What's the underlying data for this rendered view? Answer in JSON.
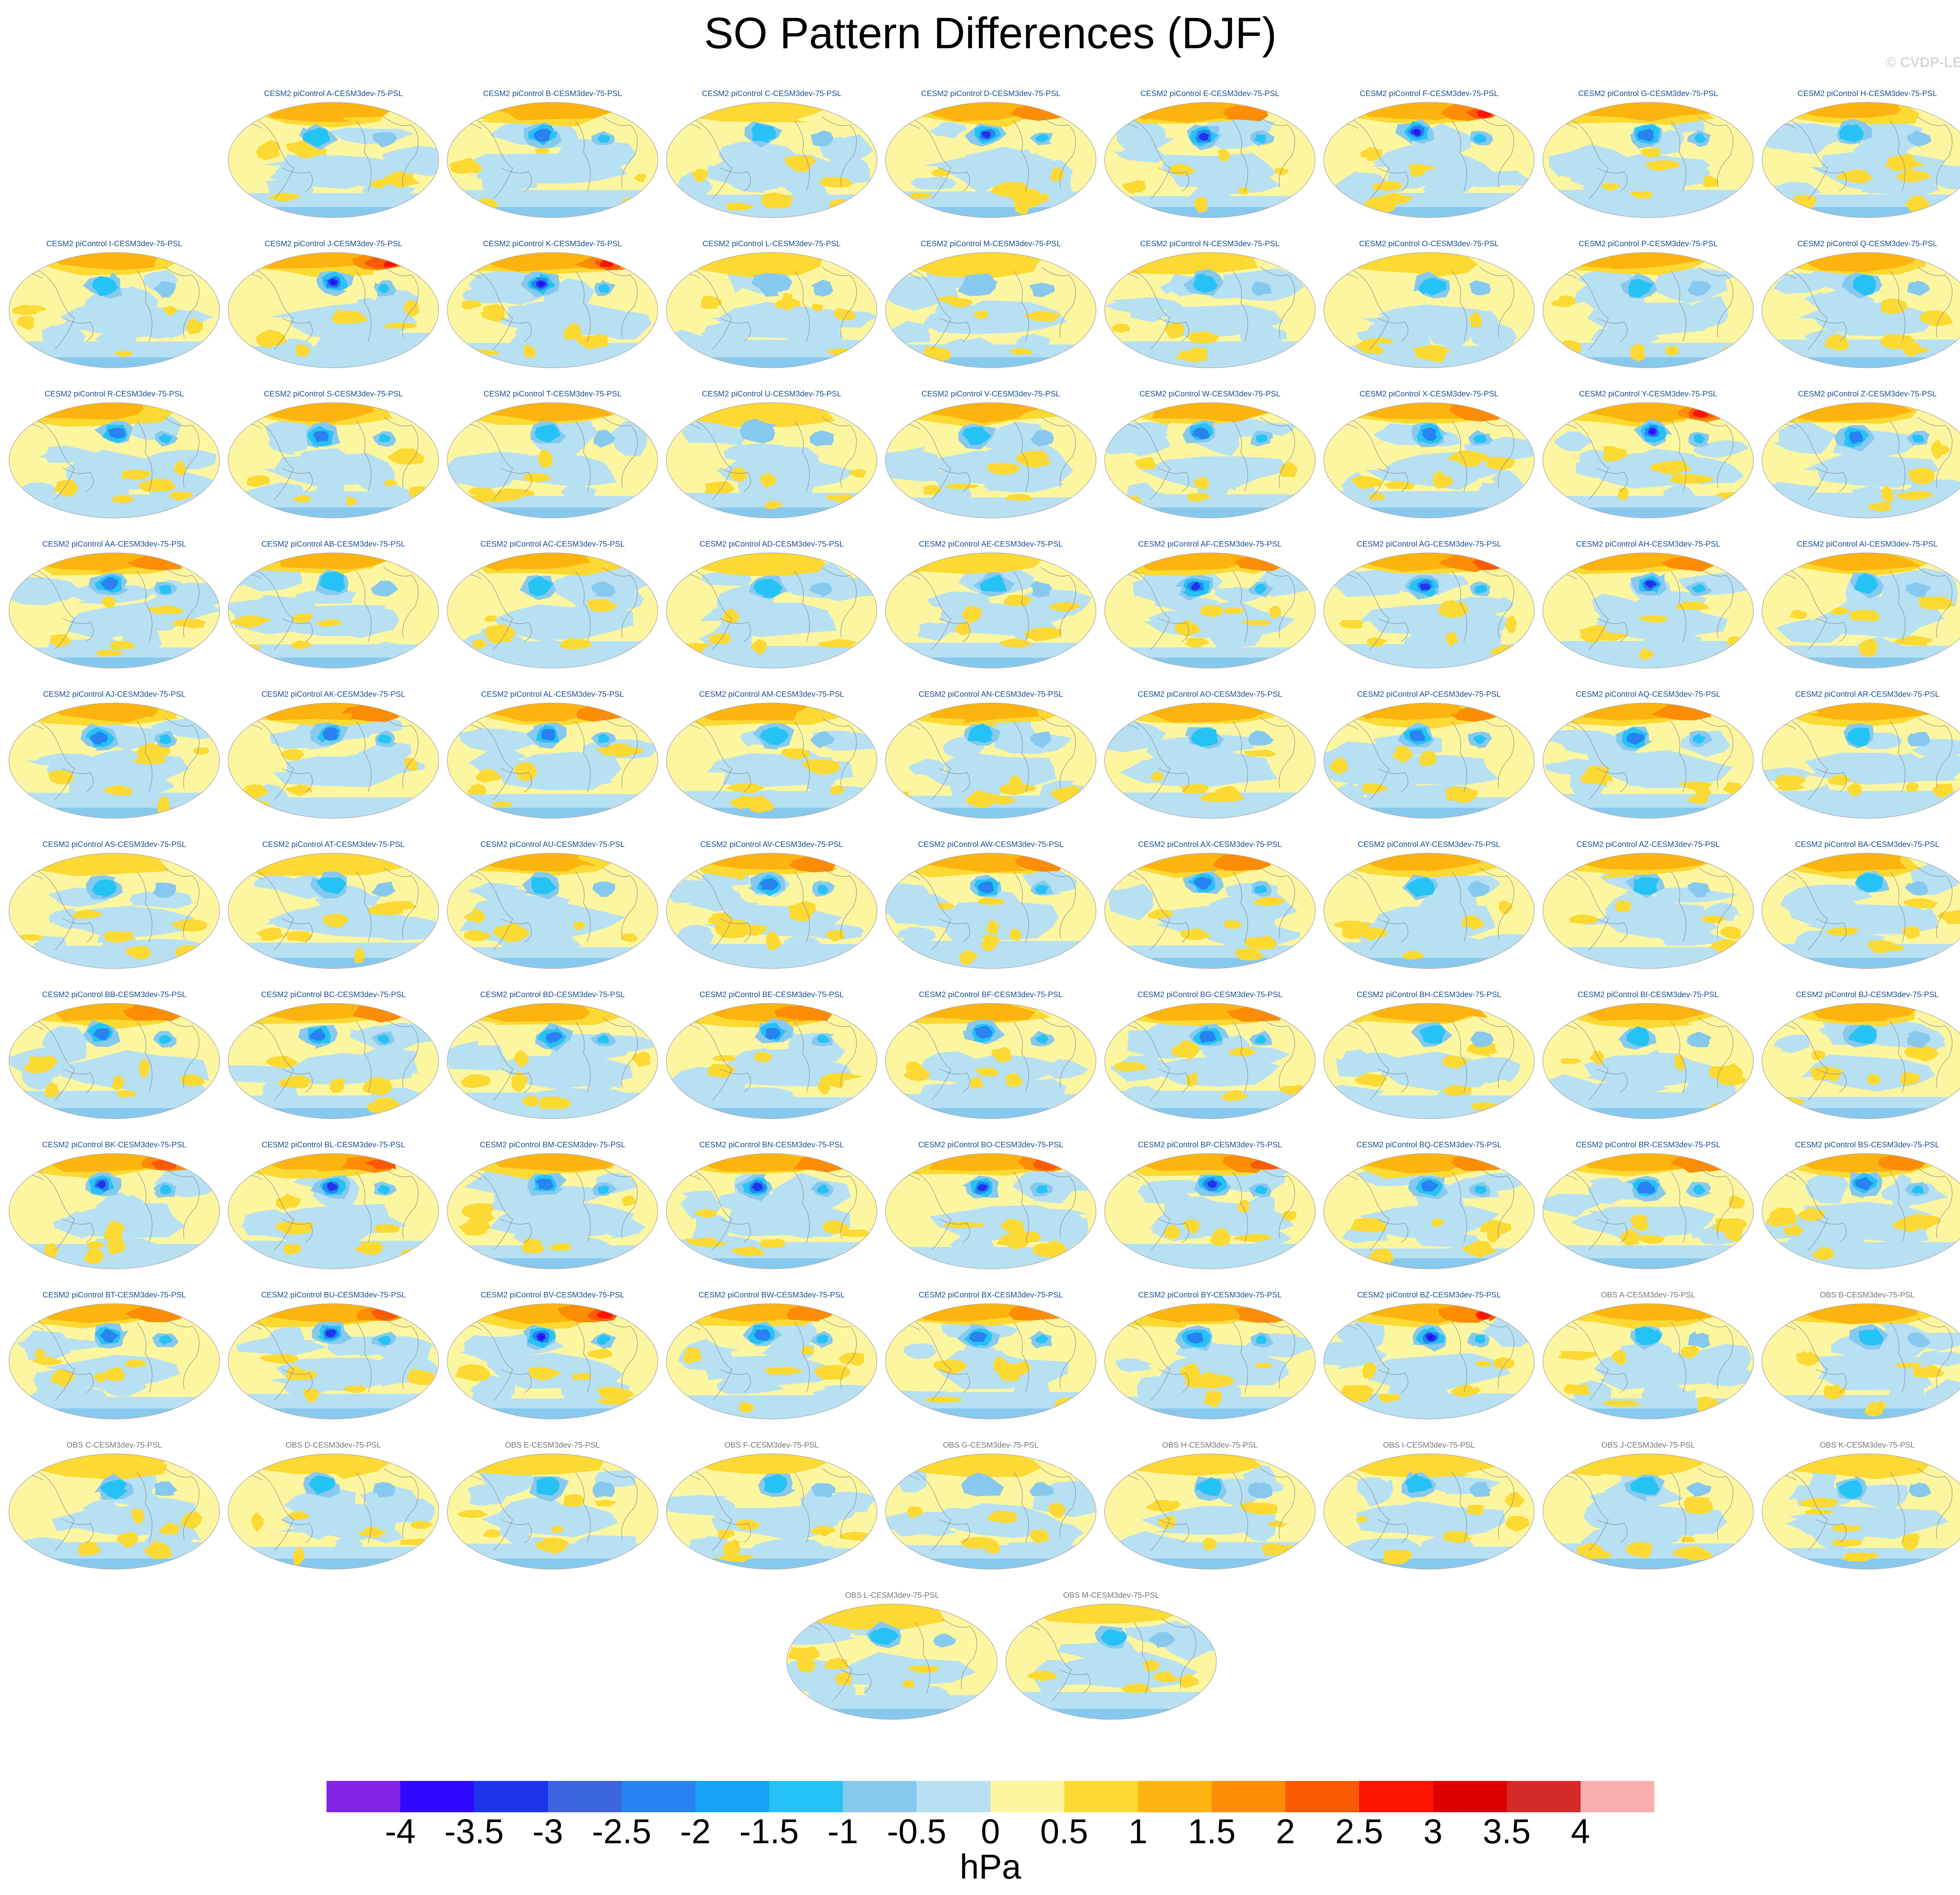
{
  "title": "SO Pattern Differences (DJF)",
  "copyright": "© CVDP-LE",
  "units": "hPa",
  "colorbar": {
    "labels": [
      "-4",
      "-3.5",
      "-3",
      "-2.5",
      "-2",
      "-1.5",
      "-1",
      "-0.5",
      "0",
      "0.5",
      "1",
      "1.5",
      "2",
      "2.5",
      "3",
      "3.5",
      "4"
    ],
    "colors": [
      "#8224e6",
      "#2e08ff",
      "#1c35ea",
      "#3a64e0",
      "#2882f0",
      "#16a3f6",
      "#25c2f5",
      "#87c9ee",
      "#b7e0f3",
      "#fdf6a0",
      "#fcd933",
      "#fdb40f",
      "#fd8c06",
      "#fb5a04",
      "#ff1400",
      "#dc0000",
      "#d42a2a",
      "#fbaeb0"
    ]
  },
  "panels": [
    {
      "label": "CESM2 piControl A-CESM3dev-75-PSL",
      "kind": "cesm",
      "strength": 0.45,
      "row": 0,
      "col": 1
    },
    {
      "label": "CESM2 piControl B-CESM3dev-75-PSL",
      "kind": "cesm",
      "strength": 0.55,
      "row": 0,
      "col": 2
    },
    {
      "label": "CESM2 piControl C-CESM3dev-75-PSL",
      "kind": "cesm",
      "strength": 0.4,
      "row": 0,
      "col": 3
    },
    {
      "label": "CESM2 piControl D-CESM3dev-75-PSL",
      "kind": "cesm",
      "strength": 0.7,
      "row": 0,
      "col": 4
    },
    {
      "label": "CESM2 piControl E-CESM3dev-75-PSL",
      "kind": "cesm",
      "strength": 0.7,
      "row": 0,
      "col": 5
    },
    {
      "label": "CESM2 piControl F-CESM3dev-75-PSL",
      "kind": "cesm",
      "strength": 0.85,
      "row": 0,
      "col": 6
    },
    {
      "label": "CESM2 piControl G-CESM3dev-75-PSL",
      "kind": "cesm",
      "strength": 0.55,
      "row": 0,
      "col": 7
    },
    {
      "label": "CESM2 piControl H-CESM3dev-75-PSL",
      "kind": "cesm",
      "strength": 0.5,
      "row": 0,
      "col": 8
    },
    {
      "label": "CESM2 piControl I-CESM3dev-75-PSL",
      "kind": "cesm",
      "strength": 0.5,
      "row": 1,
      "col": 0
    },
    {
      "label": "CESM2 piControl J-CESM3dev-75-PSL",
      "kind": "cesm",
      "strength": 0.9,
      "row": 1,
      "col": 1
    },
    {
      "label": "CESM2 piControl K-CESM3dev-75-PSL",
      "kind": "cesm",
      "strength": 0.85,
      "row": 1,
      "col": 2
    },
    {
      "label": "CESM2 piControl L-CESM3dev-75-PSL",
      "kind": "cesm",
      "strength": 0.35,
      "row": 1,
      "col": 3
    },
    {
      "label": "CESM2 piControl M-CESM3dev-75-PSL",
      "kind": "cesm",
      "strength": 0.35,
      "row": 1,
      "col": 4
    },
    {
      "label": "CESM2 piControl N-CESM3dev-75-PSL",
      "kind": "cesm",
      "strength": 0.4,
      "row": 1,
      "col": 5
    },
    {
      "label": "CESM2 piControl O-CESM3dev-75-PSL",
      "kind": "cesm",
      "strength": 0.4,
      "row": 1,
      "col": 6
    },
    {
      "label": "CESM2 piControl P-CESM3dev-75-PSL",
      "kind": "cesm",
      "strength": 0.5,
      "row": 1,
      "col": 7
    },
    {
      "label": "CESM2 piControl Q-CESM3dev-75-PSL",
      "kind": "cesm",
      "strength": 0.45,
      "row": 1,
      "col": 8
    },
    {
      "label": "CESM2 piControl R-CESM3dev-75-PSL",
      "kind": "cesm",
      "strength": 0.55,
      "row": 2,
      "col": 0
    },
    {
      "label": "CESM2 piControl S-CESM3dev-75-PSL",
      "kind": "cesm",
      "strength": 0.55,
      "row": 2,
      "col": 1
    },
    {
      "label": "CESM2 piControl T-CESM3dev-75-PSL",
      "kind": "cesm",
      "strength": 0.5,
      "row": 2,
      "col": 2
    },
    {
      "label": "CESM2 piControl U-CESM3dev-75-PSL",
      "kind": "cesm",
      "strength": 0.35,
      "row": 2,
      "col": 3
    },
    {
      "label": "CESM2 piControl V-CESM3dev-75-PSL",
      "kind": "cesm",
      "strength": 0.45,
      "row": 2,
      "col": 4
    },
    {
      "label": "CESM2 piControl W-CESM3dev-75-PSL",
      "kind": "cesm",
      "strength": 0.55,
      "row": 2,
      "col": 5
    },
    {
      "label": "CESM2 piControl X-CESM3dev-75-PSL",
      "kind": "cesm",
      "strength": 0.6,
      "row": 2,
      "col": 6
    },
    {
      "label": "CESM2 piControl Y-CESM3dev-75-PSL",
      "kind": "cesm",
      "strength": 0.85,
      "row": 2,
      "col": 7
    },
    {
      "label": "CESM2 piControl Z-CESM3dev-75-PSL",
      "kind": "cesm",
      "strength": 0.55,
      "row": 2,
      "col": 8
    },
    {
      "label": "CESM2 piControl AA-CESM3dev-75-PSL",
      "kind": "cesm",
      "strength": 0.6,
      "row": 3,
      "col": 0
    },
    {
      "label": "CESM2 piControl AB-CESM3dev-75-PSL",
      "kind": "cesm",
      "strength": 0.5,
      "row": 3,
      "col": 1
    },
    {
      "label": "CESM2 piControl AC-CESM3dev-75-PSL",
      "kind": "cesm",
      "strength": 0.45,
      "row": 3,
      "col": 2
    },
    {
      "label": "CESM2 piControl AD-CESM3dev-75-PSL",
      "kind": "cesm",
      "strength": 0.4,
      "row": 3,
      "col": 3
    },
    {
      "label": "CESM2 piControl AE-CESM3dev-75-PSL",
      "kind": "cesm",
      "strength": 0.4,
      "row": 3,
      "col": 4
    },
    {
      "label": "CESM2 piControl AF-CESM3dev-75-PSL",
      "kind": "cesm",
      "strength": 0.7,
      "row": 3,
      "col": 5
    },
    {
      "label": "CESM2 piControl AG-CESM3dev-75-PSL",
      "kind": "cesm",
      "strength": 0.75,
      "row": 3,
      "col": 6
    },
    {
      "label": "CESM2 piControl AH-CESM3dev-75-PSL",
      "kind": "cesm",
      "strength": 0.7,
      "row": 3,
      "col": 7
    },
    {
      "label": "CESM2 piControl AI-CESM3dev-75-PSL",
      "kind": "cesm",
      "strength": 0.45,
      "row": 3,
      "col": 8
    },
    {
      "label": "CESM2 piControl AJ-CESM3dev-75-PSL",
      "kind": "cesm",
      "strength": 0.55,
      "row": 4,
      "col": 0
    },
    {
      "label": "CESM2 piControl AK-CESM3dev-75-PSL",
      "kind": "cesm",
      "strength": 0.6,
      "row": 4,
      "col": 1
    },
    {
      "label": "CESM2 piControl AL-CESM3dev-75-PSL",
      "kind": "cesm",
      "strength": 0.6,
      "row": 4,
      "col": 2
    },
    {
      "label": "CESM2 piControl AM-CESM3dev-75-PSL",
      "kind": "cesm",
      "strength": 0.5,
      "row": 4,
      "col": 3
    },
    {
      "label": "CESM2 piControl AN-CESM3dev-75-PSL",
      "kind": "cesm",
      "strength": 0.45,
      "row": 4,
      "col": 4
    },
    {
      "label": "CESM2 piControl AO-CESM3dev-75-PSL",
      "kind": "cesm",
      "strength": 0.45,
      "row": 4,
      "col": 5
    },
    {
      "label": "CESM2 piControl AP-CESM3dev-75-PSL",
      "kind": "cesm",
      "strength": 0.65,
      "row": 4,
      "col": 6
    },
    {
      "label": "CESM2 piControl AQ-CESM3dev-75-PSL",
      "kind": "cesm",
      "strength": 0.6,
      "row": 4,
      "col": 7
    },
    {
      "label": "CESM2 piControl AR-CESM3dev-75-PSL",
      "kind": "cesm",
      "strength": 0.45,
      "row": 4,
      "col": 8
    },
    {
      "label": "CESM2 piControl AS-CESM3dev-75-PSL",
      "kind": "cesm",
      "strength": 0.4,
      "row": 5,
      "col": 0
    },
    {
      "label": "CESM2 piControl AT-CESM3dev-75-PSL",
      "kind": "cesm",
      "strength": 0.4,
      "row": 5,
      "col": 1
    },
    {
      "label": "CESM2 piControl AU-CESM3dev-75-PSL",
      "kind": "cesm",
      "strength": 0.5,
      "row": 5,
      "col": 2
    },
    {
      "label": "CESM2 piControl AV-CESM3dev-75-PSL",
      "kind": "cesm",
      "strength": 0.6,
      "row": 5,
      "col": 3
    },
    {
      "label": "CESM2 piControl AW-CESM3dev-75-PSL",
      "kind": "cesm",
      "strength": 0.6,
      "row": 5,
      "col": 4
    },
    {
      "label": "CESM2 piControl AX-CESM3dev-75-PSL",
      "kind": "cesm",
      "strength": 0.65,
      "row": 5,
      "col": 5
    },
    {
      "label": "CESM2 piControl AY-CESM3dev-75-PSL",
      "kind": "cesm",
      "strength": 0.5,
      "row": 5,
      "col": 6
    },
    {
      "label": "CESM2 piControl AZ-CESM3dev-75-PSL",
      "kind": "cesm",
      "strength": 0.5,
      "row": 5,
      "col": 7
    },
    {
      "label": "CESM2 piControl BA-CESM3dev-75-PSL",
      "kind": "cesm",
      "strength": 0.5,
      "row": 5,
      "col": 8
    },
    {
      "label": "CESM2 piControl BB-CESM3dev-75-PSL",
      "kind": "cesm",
      "strength": 0.6,
      "row": 6,
      "col": 0
    },
    {
      "label": "CESM2 piControl BC-CESM3dev-75-PSL",
      "kind": "cesm",
      "strength": 0.6,
      "row": 6,
      "col": 1
    },
    {
      "label": "CESM2 piControl BD-CESM3dev-75-PSL",
      "kind": "cesm",
      "strength": 0.55,
      "row": 6,
      "col": 2
    },
    {
      "label": "CESM2 piControl BE-CESM3dev-75-PSL",
      "kind": "cesm",
      "strength": 0.65,
      "row": 6,
      "col": 3
    },
    {
      "label": "CESM2 piControl BF-CESM3dev-75-PSL",
      "kind": "cesm",
      "strength": 0.55,
      "row": 6,
      "col": 4
    },
    {
      "label": "CESM2 piControl BG-CESM3dev-75-PSL",
      "kind": "cesm",
      "strength": 0.6,
      "row": 6,
      "col": 5
    },
    {
      "label": "CESM2 piControl BH-CESM3dev-75-PSL",
      "kind": "cesm",
      "strength": 0.45,
      "row": 6,
      "col": 6
    },
    {
      "label": "CESM2 piControl BI-CESM3dev-75-PSL",
      "kind": "cesm",
      "strength": 0.45,
      "row": 6,
      "col": 7
    },
    {
      "label": "CESM2 piControl BJ-CESM3dev-75-PSL",
      "kind": "cesm",
      "strength": 0.45,
      "row": 6,
      "col": 8
    },
    {
      "label": "CESM2 piControl BK-CESM3dev-75-PSL",
      "kind": "cesm",
      "strength": 0.8,
      "row": 7,
      "col": 0
    },
    {
      "label": "CESM2 piControl BL-CESM3dev-75-PSL",
      "kind": "cesm",
      "strength": 0.8,
      "row": 7,
      "col": 1
    },
    {
      "label": "CESM2 piControl BM-CESM3dev-75-PSL",
      "kind": "cesm",
      "strength": 0.55,
      "row": 7,
      "col": 2
    },
    {
      "label": "CESM2 piControl BN-CESM3dev-75-PSL",
      "kind": "cesm",
      "strength": 0.7,
      "row": 7,
      "col": 3
    },
    {
      "label": "CESM2 piControl BO-CESM3dev-75-PSL",
      "kind": "cesm",
      "strength": 0.75,
      "row": 7,
      "col": 4
    },
    {
      "label": "CESM2 piControl BP-CESM3dev-75-PSL",
      "kind": "cesm",
      "strength": 0.75,
      "row": 7,
      "col": 5
    },
    {
      "label": "CESM2 piControl BQ-CESM3dev-75-PSL",
      "kind": "cesm",
      "strength": 0.6,
      "row": 7,
      "col": 6
    },
    {
      "label": "CESM2 piControl BR-CESM3dev-75-PSL",
      "kind": "cesm",
      "strength": 0.6,
      "row": 7,
      "col": 7
    },
    {
      "label": "CESM2 piControl BS-CESM3dev-75-PSL",
      "kind": "cesm",
      "strength": 0.6,
      "row": 7,
      "col": 8
    },
    {
      "label": "CESM2 piControl BT-CESM3dev-75-PSL",
      "kind": "cesm",
      "strength": 0.6,
      "row": 8,
      "col": 0
    },
    {
      "label": "CESM2 piControl BU-CESM3dev-75-PSL",
      "kind": "cesm",
      "strength": 0.75,
      "row": 8,
      "col": 1
    },
    {
      "label": "CESM2 piControl BV-CESM3dev-75-PSL",
      "kind": "cesm",
      "strength": 0.85,
      "row": 8,
      "col": 2
    },
    {
      "label": "CESM2 piControl BW-CESM3dev-75-PSL",
      "kind": "cesm",
      "strength": 0.65,
      "row": 8,
      "col": 3
    },
    {
      "label": "CESM2 piControl BX-CESM3dev-75-PSL",
      "kind": "cesm",
      "strength": 0.65,
      "row": 8,
      "col": 4
    },
    {
      "label": "CESM2 piControl BY-CESM3dev-75-PSL",
      "kind": "cesm",
      "strength": 0.6,
      "row": 8,
      "col": 5
    },
    {
      "label": "CESM2 piControl BZ-CESM3dev-75-PSL",
      "kind": "cesm",
      "strength": 0.85,
      "row": 8,
      "col": 6
    },
    {
      "label": "OBS A-CESM3dev-75-PSL",
      "kind": "obs",
      "strength": 0.45,
      "row": 8,
      "col": 7
    },
    {
      "label": "OBS B-CESM3dev-75-PSL",
      "kind": "obs",
      "strength": 0.45,
      "row": 8,
      "col": 8
    },
    {
      "label": "OBS C-CESM3dev-75-PSL",
      "kind": "obs",
      "strength": 0.4,
      "row": 9,
      "col": 0
    },
    {
      "label": "OBS D-CESM3dev-75-PSL",
      "kind": "obs",
      "strength": 0.4,
      "row": 9,
      "col": 1
    },
    {
      "label": "OBS E-CESM3dev-75-PSL",
      "kind": "obs",
      "strength": 0.4,
      "row": 9,
      "col": 2
    },
    {
      "label": "OBS F-CESM3dev-75-PSL",
      "kind": "obs",
      "strength": 0.4,
      "row": 9,
      "col": 3
    },
    {
      "label": "OBS G-CESM3dev-75-PSL",
      "kind": "obs",
      "strength": 0.35,
      "row": 9,
      "col": 4
    },
    {
      "label": "OBS H-CESM3dev-75-PSL",
      "kind": "obs",
      "strength": 0.4,
      "row": 9,
      "col": 5
    },
    {
      "label": "OBS I-CESM3dev-75-PSL",
      "kind": "obs",
      "strength": 0.4,
      "row": 9,
      "col": 6
    },
    {
      "label": "OBS J-CESM3dev-75-PSL",
      "kind": "obs",
      "strength": 0.4,
      "row": 9,
      "col": 7
    },
    {
      "label": "OBS K-CESM3dev-75-PSL",
      "kind": "obs",
      "strength": 0.4,
      "row": 9,
      "col": 8
    },
    {
      "label": "OBS L-CESM3dev-75-PSL",
      "kind": "obs",
      "strength": 0.4,
      "row": 10,
      "col": 3.55
    },
    {
      "label": "OBS M-CESM3dev-75-PSL",
      "kind": "obs",
      "strength": 0.4,
      "row": 10,
      "col": 4.55
    }
  ]
}
